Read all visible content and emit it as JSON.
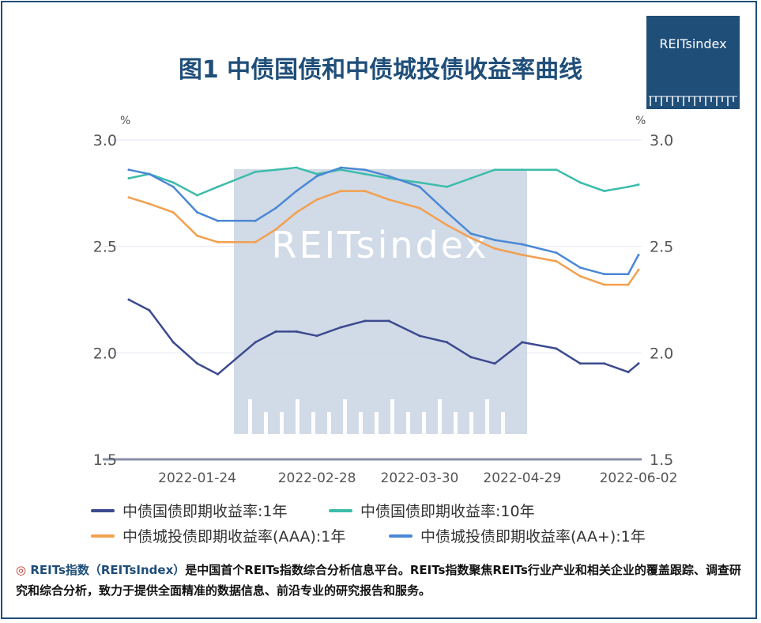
{
  "title": "图1 中债国债和中债城投债收益率曲线",
  "logo": {
    "text": "REITsindex"
  },
  "watermark": "REITsindex",
  "colors": {
    "frame": "#1f4e79",
    "title": "#1f4e79",
    "s1": "#3c4a8f",
    "s2": "#3cbcaa",
    "s3": "#f2a050",
    "s4": "#4a88d4",
    "watermark_bg": "#ccd6e4"
  },
  "footer": {
    "mark": "◎",
    "brand": "REITs指数（REITsIndex）",
    "text": "是中国首个REITs指数综合分析信息平台。REITs指数聚焦REITs行业产业和相关企业的覆盖跟踪、调查研究和综合分析，致力于提供全面精准的数据信息、前沿专业的研究报告和服务。"
  },
  "chart_data": {
    "type": "line",
    "ylim": [
      1.5,
      3.0
    ],
    "yunit_left": "%",
    "yunit_right": "%",
    "yticks": [
      "3.0",
      "2.5",
      "2.0",
      "1.5"
    ],
    "xticks": [
      "2022-01-24",
      "2022-02-28",
      "2022-03-30",
      "2022-04-29",
      "2022-06-02"
    ],
    "x": [
      "2022-01-04",
      "2022-01-10",
      "2022-01-17",
      "2022-01-24",
      "2022-01-30",
      "2022-02-10",
      "2022-02-16",
      "2022-02-22",
      "2022-02-28",
      "2022-03-07",
      "2022-03-14",
      "2022-03-21",
      "2022-03-30",
      "2022-04-07",
      "2022-04-14",
      "2022-04-21",
      "2022-04-29",
      "2022-05-09",
      "2022-05-16",
      "2022-05-23",
      "2022-05-30",
      "2022-06-02"
    ],
    "series": [
      {
        "name": "中债国债即期收益率:1年",
        "values": [
          2.25,
          2.2,
          2.05,
          1.95,
          1.9,
          2.05,
          2.1,
          2.1,
          2.08,
          2.12,
          2.15,
          2.15,
          2.08,
          2.05,
          1.98,
          1.95,
          2.05,
          2.02,
          1.95,
          1.95,
          1.91,
          1.95
        ]
      },
      {
        "name": "中债国债即期收益率:10年",
        "values": [
          2.82,
          2.84,
          2.8,
          2.74,
          2.78,
          2.85,
          2.86,
          2.87,
          2.84,
          2.86,
          2.84,
          2.82,
          2.8,
          2.78,
          2.82,
          2.86,
          2.86,
          2.86,
          2.8,
          2.76,
          2.78,
          2.79
        ]
      },
      {
        "name": "中债城投债即期收益率(AAA):1年",
        "values": [
          2.73,
          2.7,
          2.66,
          2.55,
          2.52,
          2.52,
          2.58,
          2.66,
          2.72,
          2.76,
          2.76,
          2.72,
          2.68,
          2.6,
          2.54,
          2.49,
          2.46,
          2.43,
          2.36,
          2.32,
          2.32,
          2.39
        ]
      },
      {
        "name": "中债城投债即期收益率(AA+):1年",
        "values": [
          2.86,
          2.84,
          2.78,
          2.66,
          2.62,
          2.62,
          2.68,
          2.76,
          2.83,
          2.87,
          2.86,
          2.83,
          2.78,
          2.66,
          2.56,
          2.53,
          2.51,
          2.47,
          2.4,
          2.37,
          2.37,
          2.46
        ]
      }
    ],
    "legend_position": "bottom",
    "grid": true
  }
}
